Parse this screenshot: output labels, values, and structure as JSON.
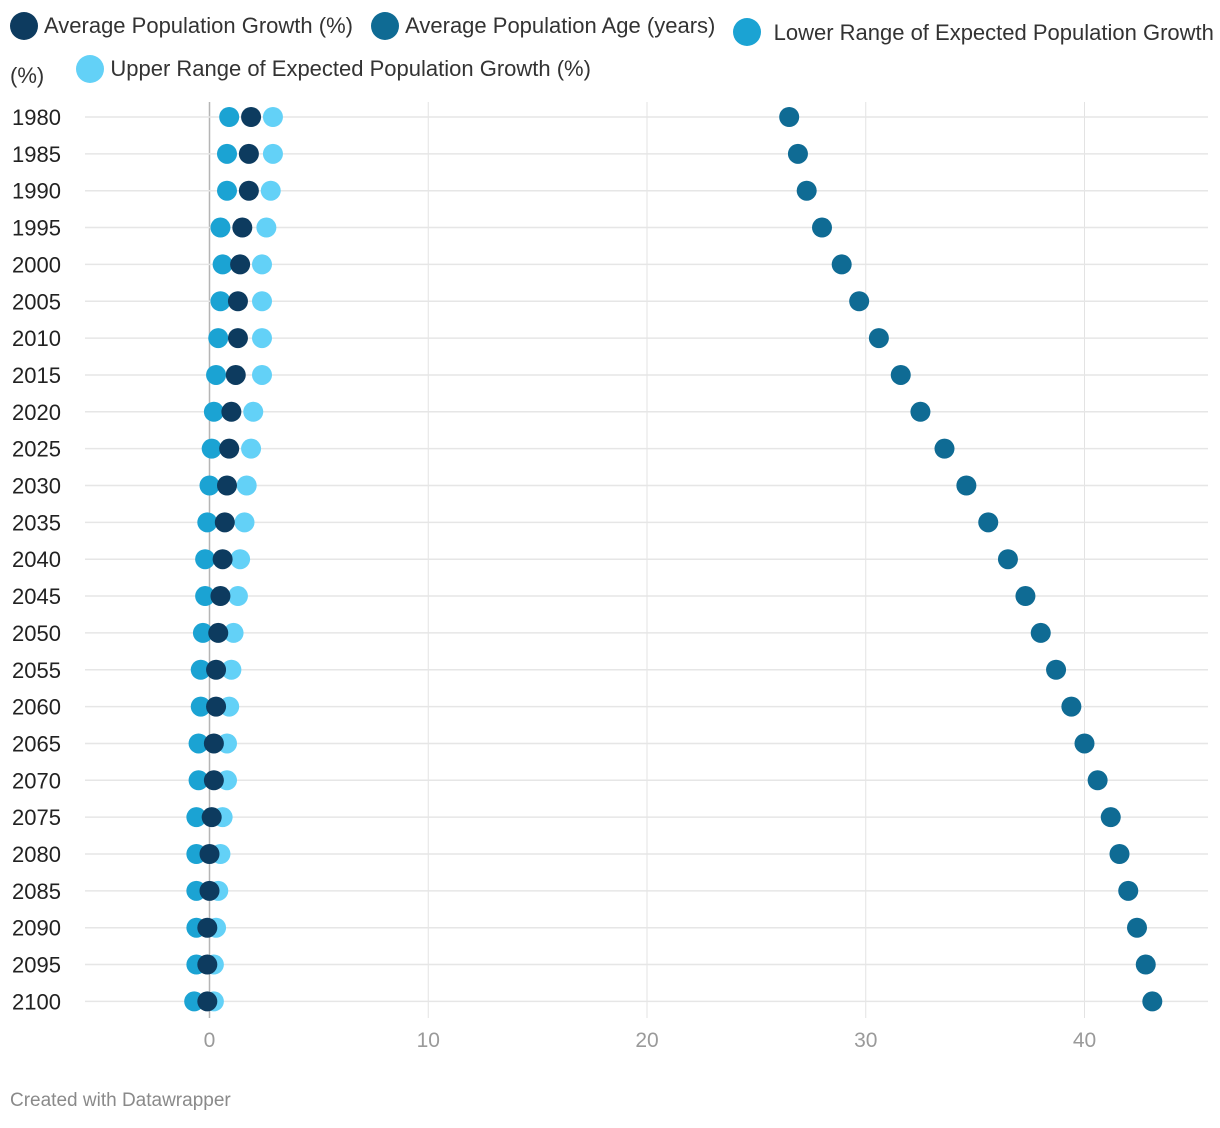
{
  "chart_data": {
    "type": "scatter",
    "title": "",
    "xlabel": "",
    "ylabel": "",
    "categories": [
      "1980",
      "1985",
      "1990",
      "1995",
      "2000",
      "2005",
      "2010",
      "2015",
      "2020",
      "2025",
      "2030",
      "2035",
      "2040",
      "2045",
      "2050",
      "2055",
      "2060",
      "2065",
      "2070",
      "2075",
      "2080",
      "2085",
      "2090",
      "2095",
      "2100"
    ],
    "xlim": [
      -5.7,
      45.5
    ],
    "xticks": [
      0,
      10,
      20,
      30,
      40
    ],
    "xtick_labels": [
      "0",
      "10",
      "20",
      "30",
      "40"
    ],
    "grid": true,
    "legend_position": "top",
    "series": [
      {
        "name": "Average Population Growth (%)",
        "color": "#0d3b5f",
        "values": [
          1.9,
          1.8,
          1.8,
          1.5,
          1.4,
          1.3,
          1.3,
          1.2,
          1.0,
          0.9,
          0.8,
          0.7,
          0.6,
          0.5,
          0.4,
          0.3,
          0.3,
          0.2,
          0.2,
          0.1,
          0.0,
          0.0,
          -0.1,
          -0.1,
          -0.1
        ]
      },
      {
        "name": "Average Population Age (years)",
        "color": "#0f6b94",
        "values": [
          26.5,
          26.9,
          27.3,
          28.0,
          28.9,
          29.7,
          30.6,
          31.6,
          32.5,
          33.6,
          34.6,
          35.6,
          36.5,
          37.3,
          38.0,
          38.7,
          39.4,
          40.0,
          40.6,
          41.2,
          41.6,
          42.0,
          42.4,
          42.8,
          43.1
        ]
      },
      {
        "name": "Lower Range of Expected Population Growth (%)",
        "color": "#1ba3d3",
        "values": [
          0.9,
          0.8,
          0.8,
          0.5,
          0.6,
          0.5,
          0.4,
          0.3,
          0.2,
          0.1,
          0.0,
          -0.1,
          -0.2,
          -0.2,
          -0.3,
          -0.4,
          -0.4,
          -0.5,
          -0.5,
          -0.6,
          -0.6,
          -0.6,
          -0.6,
          -0.6,
          -0.7
        ]
      },
      {
        "name": "Upper Range of Expected Population Growth (%)",
        "color": "#63d1f7",
        "values": [
          2.9,
          2.9,
          2.8,
          2.6,
          2.4,
          2.4,
          2.4,
          2.4,
          2.0,
          1.9,
          1.7,
          1.6,
          1.4,
          1.3,
          1.1,
          1.0,
          0.9,
          0.8,
          0.8,
          0.6,
          0.5,
          0.4,
          0.3,
          0.2,
          0.2
        ]
      }
    ]
  },
  "legend": {
    "items": [
      "Average Population Growth (%)",
      "Average Population Age (years)",
      "Lower Range of Expected Population Growth (%)",
      "Upper Range of Expected Population Growth (%)"
    ]
  },
  "footer": {
    "credit": "Created with Datawrapper"
  }
}
